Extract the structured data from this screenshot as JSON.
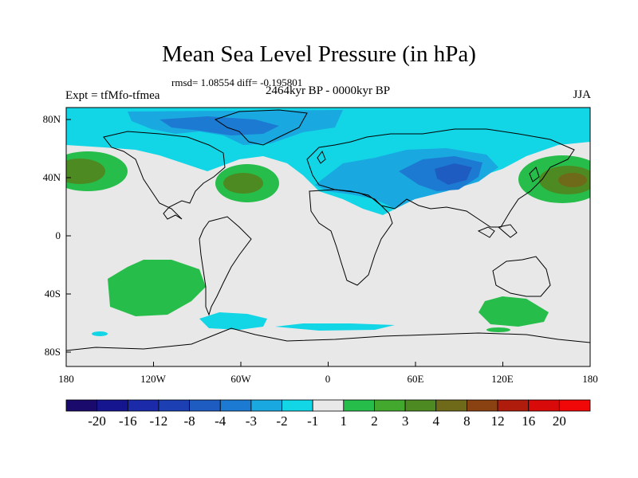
{
  "title": "Mean Sea Level Pressure (in hPa)",
  "stats": "rmsd= 1.08554 diff= -0.195801",
  "experiment": "Expt = tfMfo-tfmea",
  "period": "2464kyr BP - 0000kyr BP",
  "season": "JJA",
  "lat_labels": [
    "80N",
    "40N",
    "0",
    "40S",
    "80S"
  ],
  "lon_labels": [
    "180",
    "120W",
    "60W",
    "0",
    "60E",
    "120E",
    "180"
  ],
  "colorbar": {
    "labels": [
      "-20",
      "-16",
      "-12",
      "-8",
      "-4",
      "-3",
      "-2",
      "-1",
      "1",
      "2",
      "3",
      "4",
      "8",
      "12",
      "16",
      "20"
    ],
    "colors": [
      "#1a0a6b",
      "#15168f",
      "#1b2aa8",
      "#1c40b4",
      "#1e5cc2",
      "#1d7ad2",
      "#1aa8e0",
      "#12d6e6",
      "#e8e8e8",
      "#26bd4a",
      "#43a82e",
      "#4e8a22",
      "#6f6a1a",
      "#8a4212",
      "#b01c0c",
      "#d80a0a",
      "#f00808"
    ]
  },
  "colors": {
    "land_bg": "#e8e8e8",
    "cyan": "#12d6e6",
    "light_blue": "#1aa8e0",
    "mid_blue": "#1d7ad2",
    "deep_blue": "#1e5cc2",
    "green": "#26bd4a",
    "dark_green": "#4e8a22",
    "olive": "#6f6a1a"
  }
}
